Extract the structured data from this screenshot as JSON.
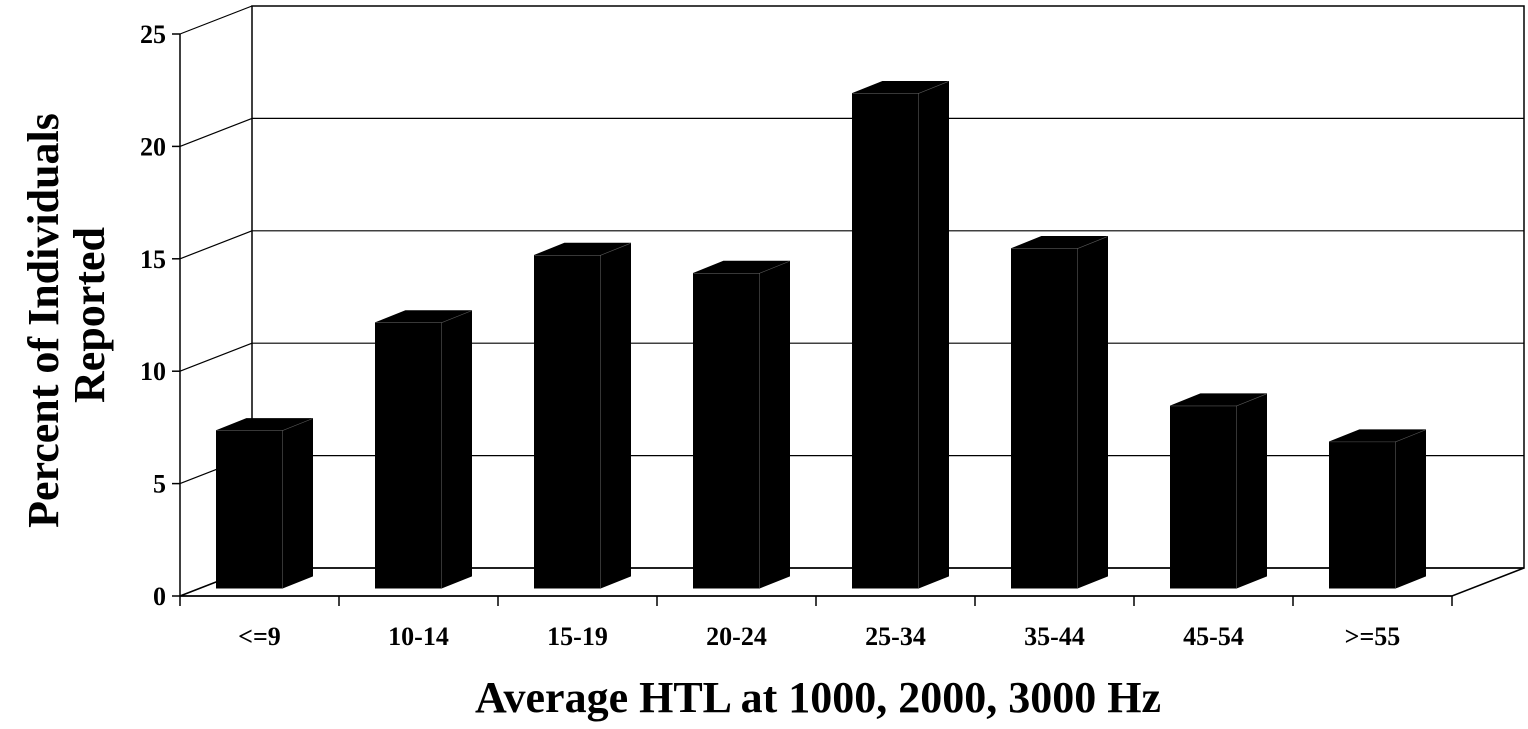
{
  "chart_data": {
    "type": "bar",
    "style": "3d",
    "title": "",
    "categories": [
      "<=9",
      "10-14",
      "15-19",
      "20-24",
      "25-34",
      "35-44",
      "45-54",
      ">=55"
    ],
    "values": [
      7.0,
      11.8,
      14.8,
      14.0,
      22.0,
      15.1,
      8.1,
      6.5
    ],
    "xlabel": "Average HTL at 1000, 2000, 3000 Hz",
    "ylabel_lines": [
      "Percent of Individuals",
      "Reported"
    ],
    "yticks": [
      "0",
      "5",
      "10",
      "15",
      "20",
      "25"
    ],
    "ylim": [
      0,
      25
    ],
    "grid": true,
    "legend": "none",
    "colors": {
      "bar": "#000000",
      "grid": "#000000",
      "background": "#ffffff"
    }
  }
}
